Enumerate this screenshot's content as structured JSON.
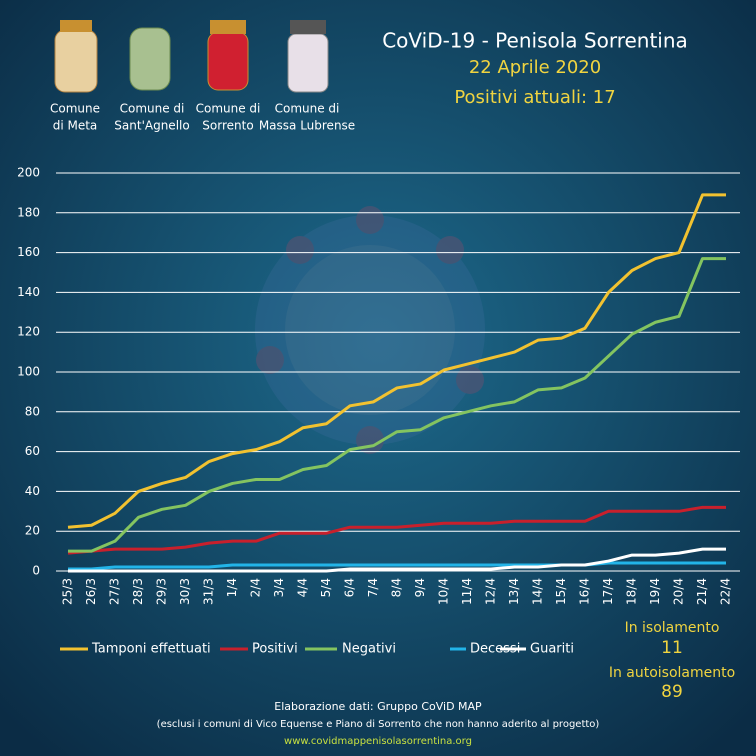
{
  "header": {
    "title": "CoViD-19  - Penisola Sorrentina",
    "date": "22 Aprile 2020",
    "subtitle": "Positivi attuali: 17"
  },
  "comuni": [
    [
      "Comune",
      "di Meta"
    ],
    [
      "Comune di",
      "Sant'Agnello"
    ],
    [
      "Comune di",
      "Sorrento"
    ],
    [
      "Comune di",
      "Massa Lubrense"
    ]
  ],
  "stats": {
    "isolamento_label": "In isolamento",
    "isolamento": 11,
    "autoisolamento_label": "In autoisolamento",
    "autoisolamento": 89
  },
  "footer": [
    "Elaborazione  dati: Gruppo CoViD MAP",
    "(esclusi i comuni di Vico Equense e Piano di Sorrento che non hanno aderito al progetto)",
    "www.covidmappenisolasorrentina.org"
  ],
  "chart_data": {
    "type": "line",
    "categories": [
      "25/3",
      "26/3",
      "27/3",
      "28/3",
      "29/3",
      "30/3",
      "31/3",
      "1/4",
      "2/4",
      "3/4",
      "4/4",
      "5/4",
      "6/4",
      "7/4",
      "8/4",
      "9/4",
      "10/4",
      "11/4",
      "12/4",
      "13/4",
      "14/4",
      "15/4",
      "16/4",
      "17/4",
      "18/4",
      "19/4",
      "20/4",
      "21/4",
      "22/4"
    ],
    "ylim": [
      0,
      200
    ],
    "yticks": [
      0,
      20,
      40,
      60,
      80,
      100,
      120,
      140,
      160,
      180,
      200
    ],
    "grid": true,
    "series": [
      {
        "name": "Tamponi effettuati",
        "color": "#f2c230",
        "values": [
          22,
          23,
          29,
          40,
          44,
          47,
          55,
          59,
          61,
          65,
          72,
          74,
          83,
          85,
          92,
          94,
          101,
          104,
          107,
          110,
          116,
          117,
          122,
          140,
          151,
          157,
          160,
          189,
          189
        ]
      },
      {
        "name": "Positivi",
        "color": "#c8202c",
        "values": [
          9,
          10,
          11,
          11,
          11,
          12,
          14,
          15,
          15,
          19,
          19,
          19,
          22,
          22,
          22,
          23,
          24,
          24,
          24,
          25,
          25,
          25,
          25,
          30,
          30,
          30,
          30,
          32,
          32
        ]
      },
      {
        "name": "Negativi",
        "color": "#84c460",
        "values": [
          10,
          10,
          15,
          27,
          31,
          33,
          40,
          44,
          46,
          46,
          51,
          53,
          61,
          63,
          70,
          71,
          77,
          80,
          83,
          85,
          91,
          92,
          97,
          108,
          119,
          125,
          128,
          157,
          157
        ]
      },
      {
        "name": "Decessi",
        "color": "#22b4e8",
        "values": [
          1,
          1,
          2,
          2,
          2,
          2,
          2,
          3,
          3,
          3,
          3,
          3,
          3,
          3,
          3,
          3,
          3,
          3,
          3,
          3,
          3,
          3,
          3,
          4,
          4,
          4,
          4,
          4,
          4
        ]
      },
      {
        "name": "Guariti",
        "color": "#ffffff",
        "values": [
          0,
          0,
          0,
          0,
          0,
          0,
          0,
          0,
          0,
          0,
          0,
          0,
          1,
          1,
          1,
          1,
          1,
          1,
          1,
          2,
          2,
          3,
          3,
          5,
          8,
          8,
          9,
          11,
          11
        ]
      }
    ]
  }
}
